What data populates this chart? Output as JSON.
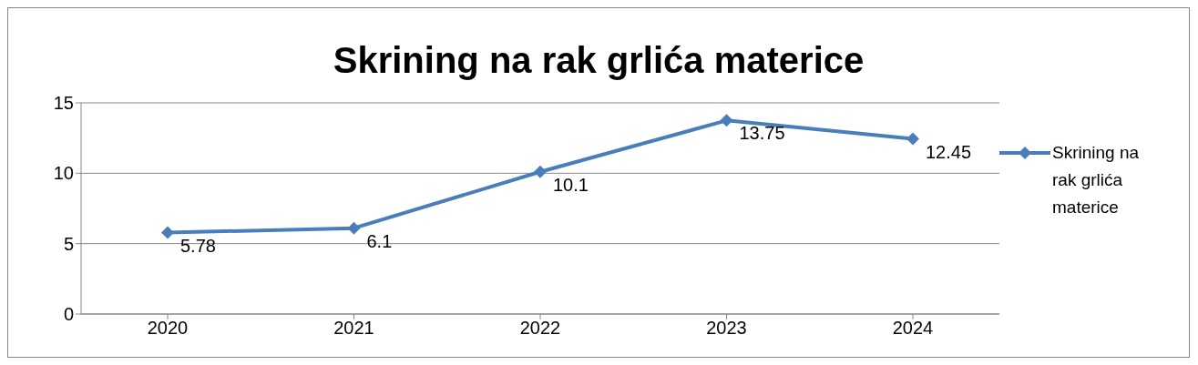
{
  "chart_data": {
    "type": "line",
    "title": "Skrining na rak grlića materice",
    "categories": [
      "2020",
      "2021",
      "2022",
      "2023",
      "2024"
    ],
    "series": [
      {
        "name": "Skrining na rak grlića materice",
        "color": "#4a7ebb",
        "values": [
          5.78,
          6.1,
          10.1,
          13.75,
          12.45
        ]
      }
    ],
    "ylim": [
      0,
      15
    ],
    "yticks": [
      0,
      5,
      10,
      15
    ],
    "grid": "y",
    "legend": "right",
    "marker": "diamond",
    "data_labels": true
  }
}
